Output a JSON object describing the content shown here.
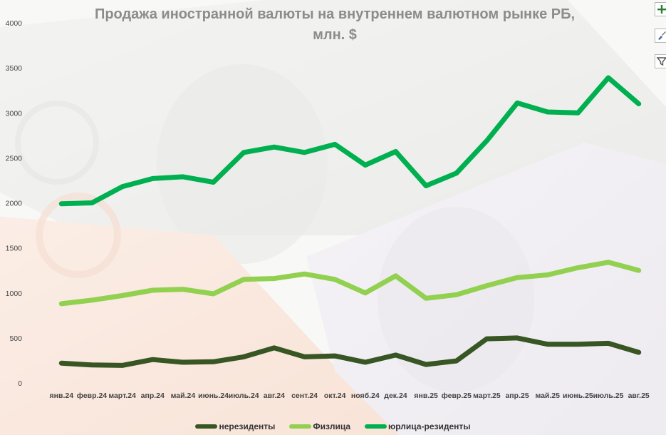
{
  "chart_data": {
    "type": "line",
    "title_lines": [
      "Продажа иностранной валюты на внутреннем валютном рынке РБ,",
      "млн. $"
    ],
    "categories": [
      "янв.24",
      "февр.24",
      "март.24",
      "апр.24",
      "май.24",
      "июнь.24",
      "июль.24",
      "авг.24",
      "сент.24",
      "окт.24",
      "нояб.24",
      "дек.24",
      "янв.25",
      "февр.25",
      "март.25",
      "апр.25",
      "май.25",
      "июнь.25",
      "июль.25",
      "авг.25"
    ],
    "y_ticks": [
      0,
      500,
      1000,
      1500,
      2000,
      2500,
      3000,
      3500,
      4000
    ],
    "ylim": [
      0,
      4000
    ],
    "grid": false,
    "legend_position": "bottom",
    "series": [
      {
        "name": "нерезиденты",
        "color": "#375623",
        "values": [
          220,
          200,
          195,
          260,
          230,
          235,
          290,
          390,
          290,
          300,
          230,
          310,
          205,
          245,
          490,
          500,
          430,
          430,
          440,
          340
        ]
      },
      {
        "name": "Физлица",
        "color": "#92d050",
        "values": [
          880,
          920,
          970,
          1030,
          1040,
          990,
          1150,
          1160,
          1210,
          1150,
          1000,
          1190,
          940,
          980,
          1080,
          1170,
          1200,
          1280,
          1340,
          1250
        ]
      },
      {
        "name": "юрлица-резиденты",
        "color": "#00b050",
        "values": [
          1990,
          2000,
          2180,
          2270,
          2290,
          2230,
          2560,
          2620,
          2560,
          2650,
          2420,
          2570,
          2190,
          2330,
          2690,
          3110,
          3010,
          3000,
          3390,
          3100
        ]
      }
    ]
  },
  "side_buttons": [
    {
      "name": "chart-elements-button",
      "icon": "plus-icon"
    },
    {
      "name": "chart-styles-button",
      "icon": "brush-icon"
    },
    {
      "name": "chart-filters-button",
      "icon": "filter-icon"
    }
  ]
}
